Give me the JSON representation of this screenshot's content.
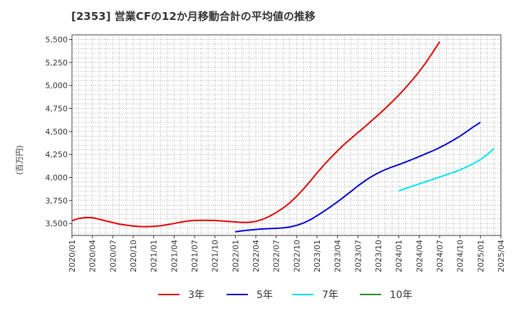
{
  "chart_data": {
    "type": "line",
    "title": "[2353]  営業CFの12か月移動合計の平均値の推移",
    "ylabel": "(百万円)",
    "xlabel": "",
    "ylim": [
      3370,
      5550
    ],
    "yticks": [
      3500,
      3750,
      4000,
      4250,
      4500,
      4750,
      5000,
      5250,
      5500
    ],
    "ytick_labels": [
      "3,500",
      "3,750",
      "4,000",
      "4,250",
      "4,500",
      "4,750",
      "5,000",
      "5,250",
      "5,500"
    ],
    "xtick_labels": [
      "2020/01",
      "2020/04",
      "2020/07",
      "2020/10",
      "2021/01",
      "2021/04",
      "2021/07",
      "2021/10",
      "2022/01",
      "2022/04",
      "2022/07",
      "2022/10",
      "2023/01",
      "2023/04",
      "2023/07",
      "2023/10",
      "2024/01",
      "2024/04",
      "2024/07",
      "2024/10",
      "2025/01",
      "2025/04"
    ],
    "grid": true,
    "legend_position": "bottom",
    "series": [
      {
        "name": "3年",
        "color": "#e00000",
        "points": [
          [
            0,
            3530
          ],
          [
            1,
            3555
          ],
          [
            2,
            3565
          ],
          [
            3,
            3563
          ],
          [
            4,
            3547
          ],
          [
            5,
            3528
          ],
          [
            6,
            3510
          ],
          [
            7,
            3493
          ],
          [
            8,
            3482
          ],
          [
            9,
            3473
          ],
          [
            10,
            3467
          ],
          [
            11,
            3466
          ],
          [
            12,
            3468
          ],
          [
            13,
            3475
          ],
          [
            14,
            3487
          ],
          [
            15,
            3500
          ],
          [
            16,
            3515
          ],
          [
            17,
            3527
          ],
          [
            18,
            3533
          ],
          [
            19,
            3535
          ],
          [
            20,
            3535
          ],
          [
            21,
            3532
          ],
          [
            22,
            3528
          ],
          [
            23,
            3522
          ],
          [
            24,
            3517
          ],
          [
            25,
            3512
          ],
          [
            26,
            3512
          ],
          [
            27,
            3523
          ],
          [
            28,
            3545
          ],
          [
            29,
            3578
          ],
          [
            30,
            3620
          ],
          [
            31,
            3668
          ],
          [
            32,
            3725
          ],
          [
            33,
            3795
          ],
          [
            34,
            3875
          ],
          [
            35,
            3960
          ],
          [
            36,
            4050
          ],
          [
            37,
            4135
          ],
          [
            38,
            4215
          ],
          [
            39,
            4290
          ],
          [
            40,
            4360
          ],
          [
            41,
            4425
          ],
          [
            42,
            4488
          ],
          [
            43,
            4550
          ],
          [
            44,
            4615
          ],
          [
            45,
            4680
          ],
          [
            46,
            4750
          ],
          [
            47,
            4820
          ],
          [
            48,
            4895
          ],
          [
            49,
            4975
          ],
          [
            50,
            5060
          ],
          [
            51,
            5150
          ],
          [
            52,
            5250
          ],
          [
            53,
            5360
          ],
          [
            54,
            5475
          ]
        ]
      },
      {
        "name": "5年",
        "color": "#0000cc",
        "points": [
          [
            24,
            3410
          ],
          [
            25,
            3420
          ],
          [
            26,
            3428
          ],
          [
            27,
            3435
          ],
          [
            28,
            3440
          ],
          [
            29,
            3444
          ],
          [
            30,
            3447
          ],
          [
            31,
            3452
          ],
          [
            32,
            3462
          ],
          [
            33,
            3480
          ],
          [
            34,
            3505
          ],
          [
            35,
            3540
          ],
          [
            36,
            3585
          ],
          [
            37,
            3632
          ],
          [
            38,
            3682
          ],
          [
            39,
            3736
          ],
          [
            40,
            3792
          ],
          [
            41,
            3850
          ],
          [
            42,
            3908
          ],
          [
            43,
            3962
          ],
          [
            44,
            4010
          ],
          [
            45,
            4050
          ],
          [
            46,
            4085
          ],
          [
            47,
            4114
          ],
          [
            48,
            4140
          ],
          [
            49,
            4168
          ],
          [
            50,
            4197
          ],
          [
            51,
            4227
          ],
          [
            52,
            4258
          ],
          [
            53,
            4290
          ],
          [
            54,
            4325
          ],
          [
            55,
            4363
          ],
          [
            56,
            4405
          ],
          [
            57,
            4450
          ],
          [
            58,
            4500
          ],
          [
            59,
            4552
          ],
          [
            60,
            4600
          ]
        ]
      },
      {
        "name": "7年",
        "color": "#00e5ee",
        "points": [
          [
            48,
            3855
          ],
          [
            49,
            3880
          ],
          [
            50,
            3905
          ],
          [
            51,
            3930
          ],
          [
            52,
            3955
          ],
          [
            53,
            3980
          ],
          [
            54,
            4005
          ],
          [
            55,
            4030
          ],
          [
            56,
            4055
          ],
          [
            57,
            4083
          ],
          [
            58,
            4115
          ],
          [
            59,
            4152
          ],
          [
            60,
            4195
          ],
          [
            61,
            4250
          ],
          [
            62,
            4315
          ]
        ]
      },
      {
        "name": "10年",
        "color": "#228b22",
        "points": []
      }
    ]
  }
}
